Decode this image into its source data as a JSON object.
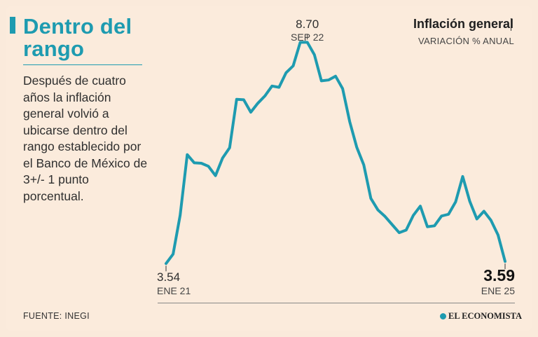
{
  "header": {
    "title_line1": "Dentro del",
    "title_line2": "rango",
    "description": "Después de cuatro años la inflación general volvió a ubicarse dentro del rango establecido por el Banco de México de 3+/- 1 punto porcentual."
  },
  "chart_header": {
    "title": "Inflación general",
    "subtitle": "VARIACIÓN % ANUAL"
  },
  "footer": {
    "source": "FUENTE: INEGI",
    "brand": "EL ECONOMISTA"
  },
  "colors": {
    "accent": "#1e9bb0",
    "background": "#faeadb"
  },
  "chart_data": {
    "type": "line",
    "title": "Inflación general",
    "subtitle": "VARIACIÓN % ANUAL",
    "x": [
      "2021-01",
      "2021-02",
      "2021-03",
      "2021-04",
      "2021-05",
      "2021-06",
      "2021-07",
      "2021-08",
      "2021-09",
      "2021-10",
      "2021-11",
      "2021-12",
      "2022-01",
      "2022-02",
      "2022-03",
      "2022-04",
      "2022-05",
      "2022-06",
      "2022-07",
      "2022-08",
      "2022-09",
      "2022-10",
      "2022-11",
      "2022-12",
      "2023-01",
      "2023-02",
      "2023-03",
      "2023-04",
      "2023-05",
      "2023-06",
      "2023-07",
      "2023-08",
      "2023-09",
      "2023-10",
      "2023-11",
      "2023-12",
      "2024-01",
      "2024-02",
      "2024-03",
      "2024-04",
      "2024-05",
      "2024-06",
      "2024-07",
      "2024-08",
      "2024-09",
      "2024-10",
      "2024-11",
      "2024-12",
      "2025-01"
    ],
    "series": [
      {
        "values": [
          3.54,
          3.76,
          4.67,
          6.08,
          5.89,
          5.88,
          5.81,
          5.59,
          6.0,
          6.24,
          7.37,
          7.36,
          7.07,
          7.28,
          7.45,
          7.68,
          7.65,
          7.99,
          8.15,
          8.7,
          8.7,
          8.41,
          7.8,
          7.82,
          7.91,
          7.62,
          6.85,
          6.25,
          5.84,
          5.06,
          4.79,
          4.64,
          4.45,
          4.26,
          4.32,
          4.66,
          4.88,
          4.4,
          4.42,
          4.65,
          4.69,
          4.98,
          5.57,
          4.99,
          4.58,
          4.76,
          4.55,
          4.21,
          3.59
        ]
      }
    ],
    "annotations": [
      {
        "index": 0,
        "value": "3.54",
        "date": "ENE 21",
        "emphasis": false
      },
      {
        "index": 20,
        "value": "8.70",
        "date": "SEP 22",
        "emphasis": false
      },
      {
        "index": 48,
        "value": "3.59",
        "date": "ENE 25",
        "emphasis": true
      }
    ],
    "ylim": [
      3.2,
      9.0
    ],
    "grid": false
  }
}
